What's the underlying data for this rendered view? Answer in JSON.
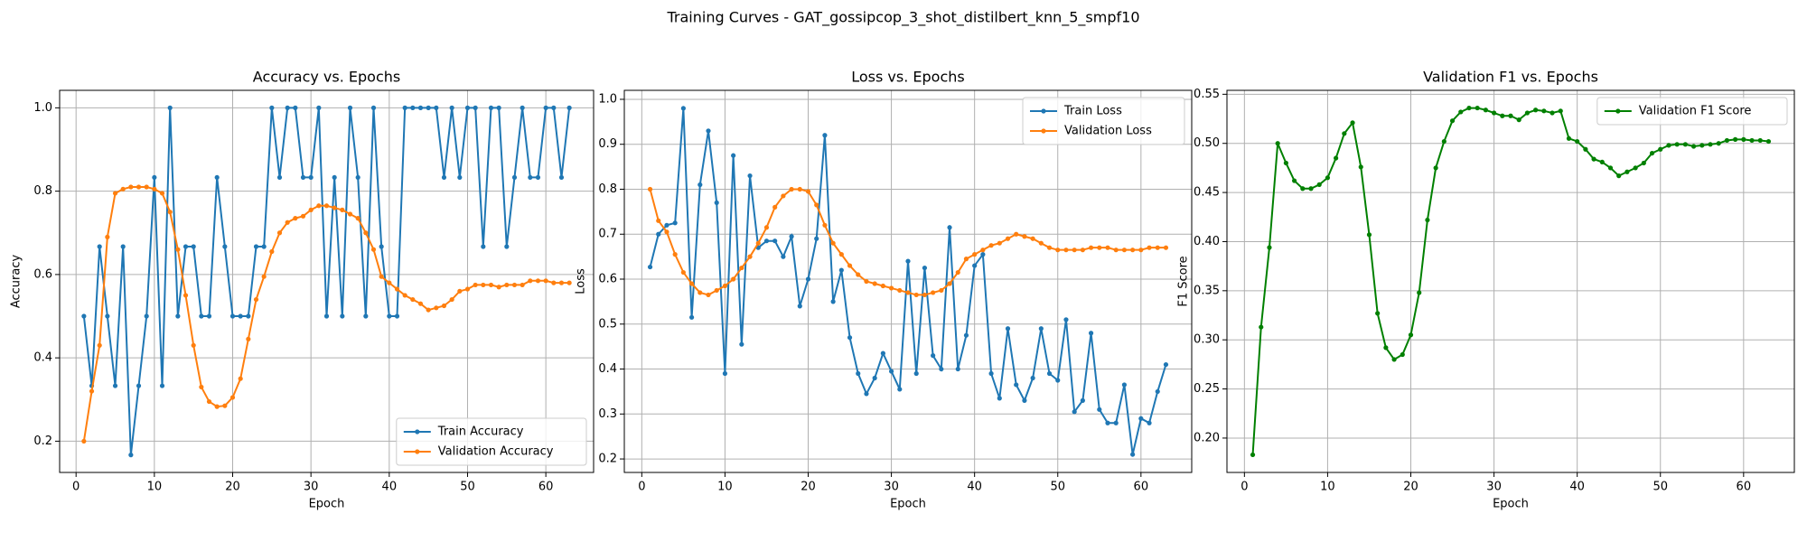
{
  "title": "Training Curves - GAT_gossipcop_3_shot_distilbert_knn_5_smpf10",
  "chart_data": [
    {
      "type": "line",
      "title": "Accuracy vs. Epochs",
      "xlabel": "Epoch",
      "ylabel": "Accuracy",
      "x": [
        1,
        2,
        3,
        4,
        5,
        6,
        7,
        8,
        9,
        10,
        11,
        12,
        13,
        14,
        15,
        16,
        17,
        18,
        19,
        20,
        21,
        22,
        23,
        24,
        25,
        26,
        27,
        28,
        29,
        30,
        31,
        32,
        33,
        34,
        35,
        36,
        37,
        38,
        39,
        40,
        41,
        42,
        43,
        44,
        45,
        46,
        47,
        48,
        49,
        50,
        51,
        52,
        53,
        54,
        55,
        56,
        57,
        58,
        59,
        60,
        61,
        62,
        63
      ],
      "series": [
        {
          "name": "Train Accuracy",
          "color": "#1f77b4",
          "values": [
            0.5,
            0.333,
            0.667,
            0.5,
            0.333,
            0.667,
            0.167,
            0.333,
            0.5,
            0.833,
            0.333,
            1.0,
            0.5,
            0.667,
            0.667,
            0.5,
            0.5,
            0.833,
            0.667,
            0.5,
            0.5,
            0.5,
            0.667,
            0.667,
            1.0,
            0.833,
            1.0,
            1.0,
            0.833,
            0.833,
            1.0,
            0.5,
            0.833,
            0.5,
            1.0,
            0.833,
            0.5,
            1.0,
            0.667,
            0.5,
            0.5,
            1.0,
            1.0,
            1.0,
            1.0,
            1.0,
            0.833,
            1.0,
            0.833,
            1.0,
            1.0,
            0.667,
            1.0,
            1.0,
            0.667,
            0.833,
            1.0,
            0.833,
            0.833,
            1.0,
            1.0,
            0.833,
            1.0
          ]
        },
        {
          "name": "Validation Accuracy",
          "color": "#ff7f0e",
          "values": [
            0.2,
            0.32,
            0.43,
            0.69,
            0.795,
            0.805,
            0.81,
            0.81,
            0.81,
            0.805,
            0.795,
            0.75,
            0.66,
            0.55,
            0.43,
            0.33,
            0.295,
            0.283,
            0.285,
            0.305,
            0.35,
            0.445,
            0.54,
            0.595,
            0.655,
            0.7,
            0.725,
            0.735,
            0.74,
            0.755,
            0.765,
            0.765,
            0.76,
            0.755,
            0.745,
            0.735,
            0.7,
            0.66,
            0.595,
            0.58,
            0.565,
            0.55,
            0.54,
            0.53,
            0.515,
            0.52,
            0.525,
            0.54,
            0.56,
            0.565,
            0.575,
            0.575,
            0.575,
            0.57,
            0.575,
            0.575,
            0.575,
            0.585,
            0.585,
            0.585,
            0.58,
            0.58,
            0.58
          ]
        }
      ],
      "xlim": [
        -2.1,
        66.1
      ],
      "xticks": [
        0,
        10,
        20,
        30,
        40,
        50,
        60
      ],
      "ylim": [
        0.125,
        1.042
      ],
      "yticks": [
        0.2,
        0.4,
        0.6,
        0.8,
        {
          "value": 1.0,
          "label": "1.0"
        }
      ],
      "grid": true,
      "legend": "lower right"
    },
    {
      "type": "line",
      "title": "Loss vs. Epochs",
      "xlabel": "Epoch",
      "ylabel": "Loss",
      "x": [
        1,
        2,
        3,
        4,
        5,
        6,
        7,
        8,
        9,
        10,
        11,
        12,
        13,
        14,
        15,
        16,
        17,
        18,
        19,
        20,
        21,
        22,
        23,
        24,
        25,
        26,
        27,
        28,
        29,
        30,
        31,
        32,
        33,
        34,
        35,
        36,
        37,
        38,
        39,
        40,
        41,
        42,
        43,
        44,
        45,
        46,
        47,
        48,
        49,
        50,
        51,
        52,
        53,
        54,
        55,
        56,
        57,
        58,
        59,
        60,
        61,
        62,
        63
      ],
      "series": [
        {
          "name": "Train Loss",
          "color": "#1f77b4",
          "values": [
            0.627,
            0.7,
            0.72,
            0.725,
            0.98,
            0.515,
            0.81,
            0.93,
            0.77,
            0.39,
            0.875,
            0.455,
            0.83,
            0.67,
            0.685,
            0.685,
            0.65,
            0.695,
            0.54,
            0.6,
            0.69,
            0.92,
            0.55,
            0.62,
            0.47,
            0.39,
            0.345,
            0.38,
            0.435,
            0.395,
            0.355,
            0.64,
            0.39,
            0.625,
            0.43,
            0.4,
            0.715,
            0.4,
            0.475,
            0.63,
            0.655,
            0.39,
            0.335,
            0.49,
            0.365,
            0.33,
            0.38,
            0.49,
            0.39,
            0.375,
            0.51,
            0.305,
            0.33,
            0.48,
            0.31,
            0.28,
            0.28,
            0.365,
            0.21,
            0.29,
            0.28,
            0.35,
            0.41
          ]
        },
        {
          "name": "Validation Loss",
          "color": "#ff7f0e",
          "values": [
            0.8,
            0.73,
            0.705,
            0.655,
            0.615,
            0.59,
            0.57,
            0.565,
            0.575,
            0.585,
            0.6,
            0.625,
            0.65,
            0.68,
            0.715,
            0.76,
            0.785,
            0.8,
            0.8,
            0.795,
            0.765,
            0.72,
            0.68,
            0.655,
            0.63,
            0.61,
            0.595,
            0.59,
            0.585,
            0.58,
            0.575,
            0.57,
            0.565,
            0.565,
            0.57,
            0.575,
            0.59,
            0.615,
            0.645,
            0.655,
            0.665,
            0.675,
            0.68,
            0.69,
            0.7,
            0.695,
            0.69,
            0.68,
            0.67,
            0.665,
            0.665,
            0.665,
            0.665,
            0.67,
            0.67,
            0.67,
            0.665,
            0.665,
            0.665,
            0.665,
            0.67,
            0.67,
            0.67
          ]
        }
      ],
      "xlim": [
        -2.1,
        66.1
      ],
      "xticks": [
        0,
        10,
        20,
        30,
        40,
        50,
        60
      ],
      "ylim": [
        0.17,
        1.02
      ],
      "yticks": [
        0.2,
        0.3,
        0.4,
        0.5,
        0.6,
        0.7,
        0.8,
        0.9,
        {
          "value": 1.0,
          "label": "1.0"
        }
      ],
      "grid": true,
      "legend": "upper right"
    },
    {
      "type": "line",
      "title": "Validation F1 vs. Epochs",
      "xlabel": "Epoch",
      "ylabel": "F1 Score",
      "x": [
        1,
        2,
        3,
        4,
        5,
        6,
        7,
        8,
        9,
        10,
        11,
        12,
        13,
        14,
        15,
        16,
        17,
        18,
        19,
        20,
        21,
        22,
        23,
        24,
        25,
        26,
        27,
        28,
        29,
        30,
        31,
        32,
        33,
        34,
        35,
        36,
        37,
        38,
        39,
        40,
        41,
        42,
        43,
        44,
        45,
        46,
        47,
        48,
        49,
        50,
        51,
        52,
        53,
        54,
        55,
        56,
        57,
        58,
        59,
        60,
        61,
        62,
        63
      ],
      "series": [
        {
          "name": "Validation F1 Score",
          "color": "#008000",
          "values": [
            0.183,
            0.313,
            0.394,
            0.5,
            0.48,
            0.462,
            0.454,
            0.454,
            0.458,
            0.465,
            0.485,
            0.51,
            0.521,
            0.476,
            0.407,
            0.327,
            0.292,
            0.28,
            0.285,
            0.305,
            0.348,
            0.422,
            0.475,
            0.502,
            0.523,
            0.532,
            0.536,
            0.536,
            0.534,
            0.531,
            0.528,
            0.528,
            0.524,
            0.531,
            0.534,
            0.533,
            0.531,
            0.533,
            0.505,
            0.502,
            0.494,
            0.484,
            0.481,
            0.475,
            0.467,
            0.471,
            0.475,
            0.48,
            0.49,
            0.494,
            0.498,
            0.499,
            0.499,
            0.497,
            0.498,
            0.499,
            0.5,
            0.503,
            0.504,
            0.504,
            0.503,
            0.503,
            0.502
          ]
        }
      ],
      "xlim": [
        -2.1,
        66.1
      ],
      "xticks": [
        0,
        10,
        20,
        30,
        40,
        50,
        60
      ],
      "ylim": [
        0.165,
        0.554
      ],
      "yticks": [
        {
          "value": 0.2,
          "label": "0.20"
        },
        {
          "value": 0.25,
          "label": "0.25"
        },
        {
          "value": 0.3,
          "label": "0.30"
        },
        {
          "value": 0.35,
          "label": "0.35"
        },
        {
          "value": 0.4,
          "label": "0.40"
        },
        {
          "value": 0.45,
          "label": "0.45"
        },
        {
          "value": 0.5,
          "label": "0.50"
        },
        {
          "value": 0.55,
          "label": "0.55"
        }
      ],
      "grid": true,
      "legend": "upper right"
    }
  ]
}
